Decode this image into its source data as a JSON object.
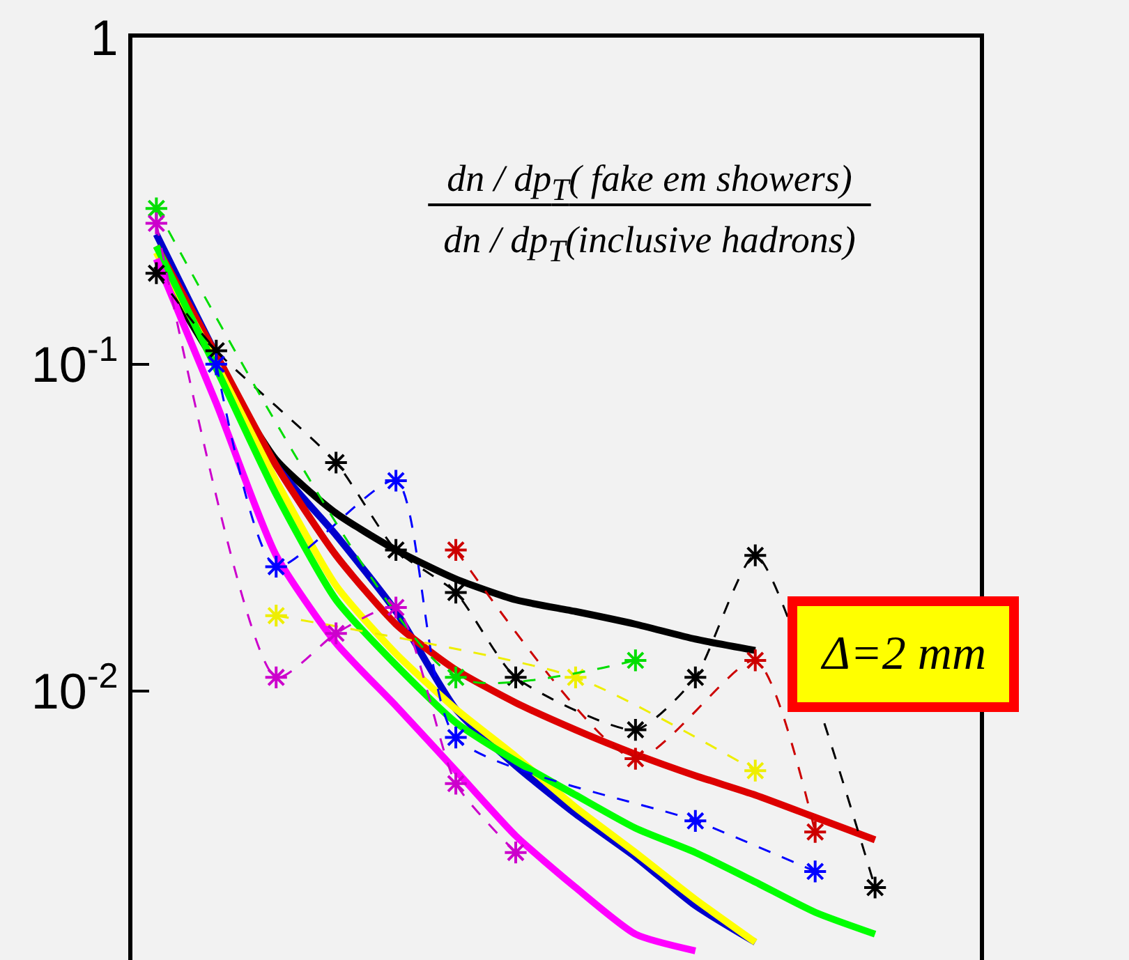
{
  "chart_data": {
    "type": "line",
    "categories": [
      null,
      null,
      null,
      null,
      null,
      null,
      null,
      null,
      null,
      null,
      null,
      null,
      null
    ],
    "series": [
      {
        "color": "#000000",
        "line_style": "solid",
        "marker": "none",
        "values": [
          0.2,
          0.1,
          0.051,
          0.035,
          0.027,
          0.022,
          0.019,
          0.0175,
          0.016,
          0.0144,
          0.0133,
          null,
          null
        ]
      },
      {
        "color": "#0000cc",
        "line_style": "solid",
        "marker": "none",
        "values": [
          0.25,
          0.107,
          0.049,
          0.03,
          0.0175,
          0.0088,
          0.0059,
          0.0042,
          0.0031,
          0.0022,
          0.0017,
          null,
          null
        ]
      },
      {
        "color": "#dd0000",
        "line_style": "solid",
        "marker": "none",
        "values": [
          0.23,
          0.107,
          0.049,
          0.026,
          0.016,
          0.0116,
          0.0092,
          0.0076,
          0.0064,
          0.0055,
          0.0048,
          0.0041,
          0.0035
        ]
      },
      {
        "color": "#ffff00",
        "line_style": "solid",
        "marker": "none",
        "values": [
          0.22,
          0.1,
          0.044,
          0.021,
          0.013,
          0.0088,
          0.0063,
          0.0044,
          0.0032,
          0.0023,
          0.0017,
          null,
          null
        ]
      },
      {
        "color": "#00ff00",
        "line_style": "solid",
        "marker": "none",
        "values": [
          0.23,
          0.097,
          0.04,
          0.019,
          0.012,
          0.008,
          0.0061,
          0.0048,
          0.0038,
          0.0032,
          0.0026,
          0.0021,
          0.0018
        ]
      },
      {
        "color": "#ff00ff",
        "line_style": "solid",
        "marker": "none",
        "values": [
          0.21,
          0.076,
          0.026,
          0.014,
          0.009,
          0.0057,
          0.0036,
          0.0025,
          0.0018,
          0.0016,
          null,
          null,
          null
        ]
      },
      {
        "color": "#000000",
        "line_style": "dashed",
        "marker": "cross",
        "values": [
          0.19,
          0.11,
          null,
          0.05,
          0.027,
          0.02,
          0.011,
          null,
          0.0076,
          0.011,
          0.026,
          null,
          0.0025
        ]
      },
      {
        "color": "#0000ff",
        "line_style": "dashed",
        "marker": "cross",
        "values": [
          null,
          0.1,
          0.024,
          null,
          0.044,
          0.0072,
          null,
          null,
          null,
          0.004,
          null,
          0.0028,
          null
        ]
      },
      {
        "color": "#cc0000",
        "line_style": "dashed",
        "marker": "cross",
        "values": [
          null,
          null,
          null,
          null,
          null,
          0.027,
          null,
          null,
          0.0062,
          null,
          0.0124,
          0.0037,
          null
        ]
      },
      {
        "color": "#eeee00",
        "line_style": "dashed",
        "marker": "cross",
        "values": [
          null,
          null,
          0.017,
          null,
          null,
          null,
          null,
          0.011,
          null,
          null,
          0.0057,
          null,
          null
        ]
      },
      {
        "color": "#00dd00",
        "line_style": "dashed",
        "marker": "cross",
        "values": [
          0.3,
          null,
          null,
          null,
          null,
          0.011,
          null,
          null,
          0.0124,
          null,
          null,
          null,
          null
        ]
      },
      {
        "color": "#cc00cc",
        "line_style": "dashed",
        "marker": "cross",
        "values": [
          0.27,
          null,
          0.011,
          0.015,
          0.018,
          0.0052,
          0.0032,
          null,
          null,
          null,
          null,
          null,
          null
        ]
      }
    ],
    "ylim": [
      0.0015,
      1
    ],
    "yticks": [
      1,
      {
        "value": 0.1,
        "label": "10$^{-1}$"
      },
      {
        "value": 0.01,
        "label": "10$^{-2}$"
      }
    ],
    "log": "y",
    "grid": false,
    "tick_labels": "y",
    "annotations": [
      "dn / dp$_{T}$( fake em showers)",
      "dn / dp$_{T}$(inclusive hadrons)",
      "Δ=2 mm"
    ]
  }
}
